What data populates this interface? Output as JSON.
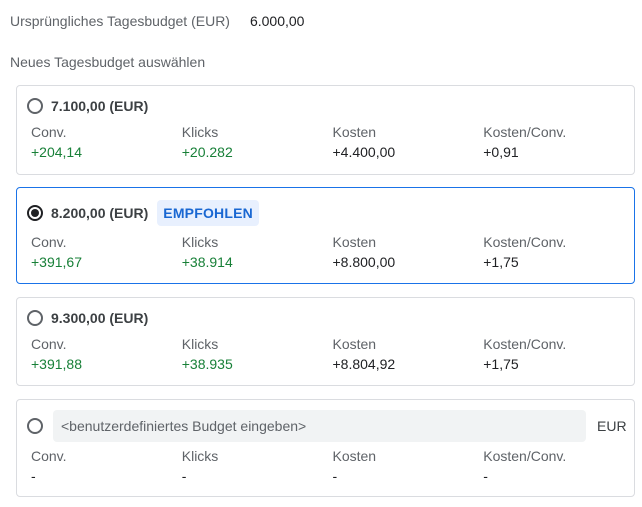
{
  "original": {
    "label": "Ursprüngliches Tagesbudget (EUR)",
    "value": "6.000,00"
  },
  "section_label": "Neues Tagesbudget auswählen",
  "metric_labels": {
    "conv": "Conv.",
    "clicks": "Klicks",
    "cost": "Kosten",
    "cost_per_conv": "Kosten/Conv."
  },
  "options": [
    {
      "amount": "7.100,00 (EUR)",
      "selected": false,
      "conv": "+204,14",
      "clicks": "+20.282",
      "cost": "+4.400,00",
      "cost_per_conv": "+0,91"
    },
    {
      "amount": "8.200,00 (EUR)",
      "selected": true,
      "badge": "EMPFOHLEN",
      "conv": "+391,67",
      "clicks": "+38.914",
      "cost": "+8.800,00",
      "cost_per_conv": "+1,75"
    },
    {
      "amount": "9.300,00 (EUR)",
      "selected": false,
      "conv": "+391,88",
      "clicks": "+38.935",
      "cost": "+8.804,92",
      "cost_per_conv": "+1,75"
    }
  ],
  "custom": {
    "placeholder": "<benutzerdefiniertes Budget eingeben>",
    "value": "",
    "unit": "EUR",
    "conv": "-",
    "clicks": "-",
    "cost": "-",
    "cost_per_conv": "-"
  },
  "colors": {
    "positive": "#188038",
    "accent": "#1a73e8",
    "badge_bg": "#e8f0fe",
    "badge_text": "#1967d2"
  }
}
